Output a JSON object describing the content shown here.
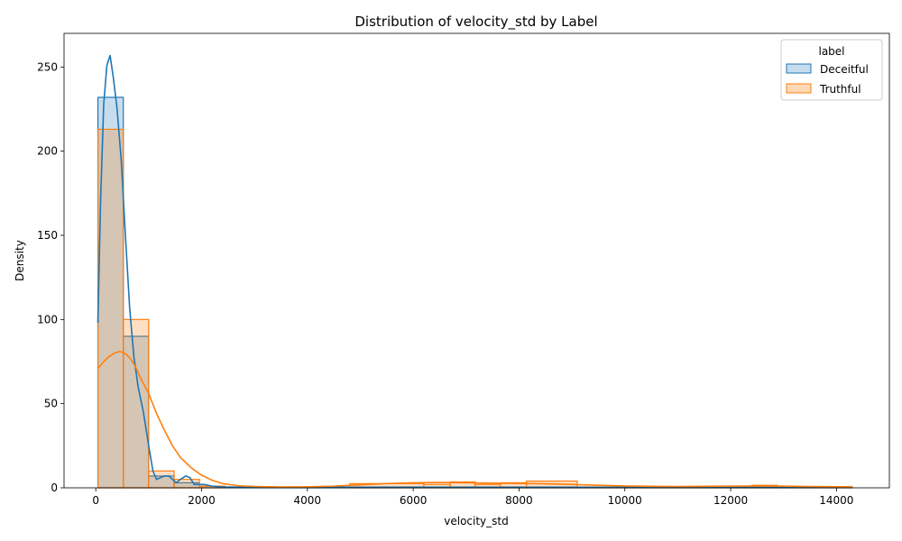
{
  "chart_data": {
    "type": "histogram",
    "title": "Distribution of velocity_std by Label",
    "xlabel": "velocity_std",
    "ylabel": "Density",
    "xlim": [
      -600,
      15000
    ],
    "ylim": [
      0,
      270
    ],
    "xticks": [
      0,
      2000,
      4000,
      6000,
      8000,
      10000,
      12000,
      14000
    ],
    "yticks": [
      0,
      50,
      100,
      150,
      200,
      250
    ],
    "grid": false,
    "legend": {
      "title": "label",
      "position": "top-right"
    },
    "series": [
      {
        "name": "Deceitful",
        "color": "#1f77b4",
        "fill": "#c6dbef",
        "bins": [
          [
            40,
            520,
            232
          ],
          [
            520,
            1000,
            90
          ],
          [
            1000,
            1480,
            7
          ],
          [
            1480,
            1960,
            3
          ],
          [
            1960,
            2440,
            1
          ],
          [
            2440,
            14300,
            0.5
          ]
        ],
        "kde": [
          [
            40,
            98
          ],
          [
            90,
            170
          ],
          [
            150,
            228
          ],
          [
            210,
            251
          ],
          [
            270,
            257
          ],
          [
            330,
            244
          ],
          [
            400,
            226
          ],
          [
            480,
            195
          ],
          [
            560,
            150
          ],
          [
            640,
            107
          ],
          [
            720,
            78
          ],
          [
            800,
            60
          ],
          [
            900,
            45
          ],
          [
            1000,
            25
          ],
          [
            1080,
            10
          ],
          [
            1150,
            5
          ],
          [
            1220,
            6
          ],
          [
            1300,
            7
          ],
          [
            1380,
            7
          ],
          [
            1450,
            5
          ],
          [
            1520,
            3
          ],
          [
            1600,
            5
          ],
          [
            1700,
            7
          ],
          [
            1780,
            6
          ],
          [
            1860,
            2
          ],
          [
            1950,
            2
          ],
          [
            2050,
            2
          ],
          [
            2200,
            1
          ],
          [
            2400,
            0.5
          ],
          [
            3000,
            0.3
          ],
          [
            6000,
            0.3
          ],
          [
            10000,
            0.3
          ],
          [
            14300,
            0.2
          ]
        ]
      },
      {
        "name": "Truthful",
        "color": "#ff7f0e",
        "fill": "#fdd9b5",
        "bins": [
          [
            40,
            520,
            213
          ],
          [
            520,
            1000,
            100
          ],
          [
            1000,
            1480,
            10
          ],
          [
            1480,
            1960,
            5
          ],
          [
            1960,
            2440,
            1
          ],
          [
            4800,
            6200,
            2.5
          ],
          [
            6200,
            6700,
            2
          ],
          [
            6700,
            7170,
            3.5
          ],
          [
            7170,
            7650,
            2
          ],
          [
            7650,
            8140,
            3
          ],
          [
            8140,
            9100,
            4
          ],
          [
            9100,
            12400,
            0.5
          ],
          [
            12400,
            12880,
            1.5
          ],
          [
            12880,
            14300,
            0.5
          ]
        ],
        "kde": [
          [
            40,
            71
          ],
          [
            150,
            75
          ],
          [
            250,
            78
          ],
          [
            350,
            80
          ],
          [
            450,
            81
          ],
          [
            550,
            80
          ],
          [
            650,
            77
          ],
          [
            750,
            72
          ],
          [
            850,
            65
          ],
          [
            1000,
            56
          ],
          [
            1150,
            44
          ],
          [
            1300,
            34
          ],
          [
            1450,
            25
          ],
          [
            1600,
            18
          ],
          [
            1800,
            12
          ],
          [
            2000,
            7.5
          ],
          [
            2200,
            4.5
          ],
          [
            2400,
            2.5
          ],
          [
            2700,
            1.2
          ],
          [
            3000,
            0.8
          ],
          [
            3500,
            0.5
          ],
          [
            4000,
            0.6
          ],
          [
            4500,
            1
          ],
          [
            5000,
            1.8
          ],
          [
            5500,
            2.5
          ],
          [
            6000,
            3
          ],
          [
            6500,
            3.2
          ],
          [
            7000,
            3
          ],
          [
            7500,
            2.8
          ],
          [
            8000,
            2.6
          ],
          [
            8500,
            2.4
          ],
          [
            9000,
            2
          ],
          [
            9500,
            1.5
          ],
          [
            10000,
            1.1
          ],
          [
            10500,
            0.9
          ],
          [
            11000,
            0.8
          ],
          [
            11500,
            0.9
          ],
          [
            12000,
            1
          ],
          [
            12500,
            1.1
          ],
          [
            13000,
            1
          ],
          [
            13500,
            0.8
          ],
          [
            14300,
            0.6
          ]
        ]
      }
    ]
  }
}
